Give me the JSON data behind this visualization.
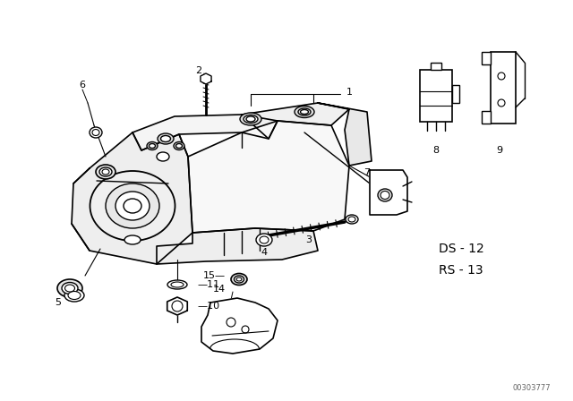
{
  "background_color": "#ffffff",
  "line_color": "#000000",
  "text_color": "#000000",
  "part_number_text": "00303777",
  "ds_label": "DS - 12",
  "rs_label": "RS - 13",
  "fig_width": 6.4,
  "fig_height": 4.48,
  "dpi": 100
}
